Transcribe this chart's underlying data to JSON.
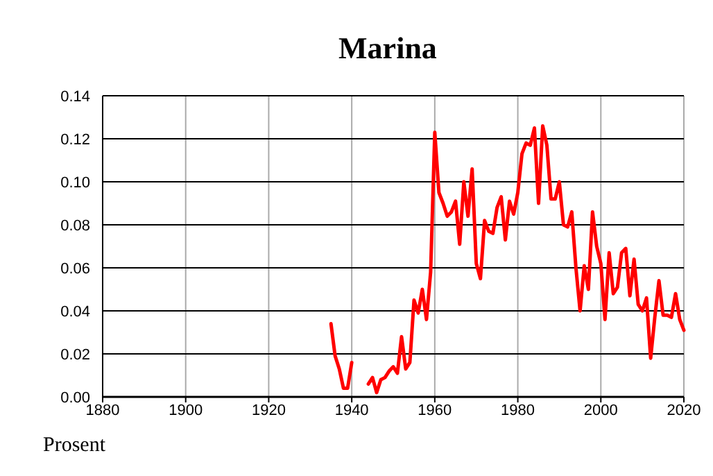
{
  "chart_data": {
    "type": "line",
    "title": "Marina",
    "ylabel": "Prosent",
    "x": [
      1935,
      1936,
      1937,
      1938,
      1939,
      1940,
      1941,
      1944,
      1945,
      1946,
      1947,
      1948,
      1949,
      1950,
      1951,
      1952,
      1953,
      1954,
      1955,
      1956,
      1957,
      1958,
      1959,
      1960,
      1961,
      1962,
      1963,
      1964,
      1965,
      1966,
      1967,
      1968,
      1969,
      1970,
      1971,
      1972,
      1973,
      1974,
      1975,
      1976,
      1977,
      1978,
      1979,
      1980,
      1981,
      1982,
      1983,
      1984,
      1985,
      1986,
      1987,
      1988,
      1989,
      1990,
      1991,
      1992,
      1993,
      1994,
      1995,
      1996,
      1997,
      1998,
      1999,
      2000,
      2001,
      2002,
      2003,
      2004,
      2005,
      2006,
      2007,
      2008,
      2009,
      2010,
      2011,
      2012,
      2013,
      2014,
      2015,
      2016,
      2017,
      2018,
      2019,
      2020
    ],
    "series": [
      {
        "color": "#ff0000",
        "values": [
          0.034,
          0.019,
          0.013,
          0.004,
          0.004,
          0.016,
          null,
          0.006,
          0.009,
          0.002,
          0.008,
          0.009,
          0.012,
          0.014,
          0.011,
          0.028,
          0.013,
          0.016,
          0.045,
          0.039,
          0.05,
          0.036,
          0.058,
          0.123,
          0.095,
          0.09,
          0.084,
          0.086,
          0.091,
          0.071,
          0.1,
          0.084,
          0.106,
          0.062,
          0.055,
          0.082,
          0.077,
          0.076,
          0.088,
          0.093,
          0.073,
          0.091,
          0.085,
          0.095,
          0.113,
          0.118,
          0.117,
          0.125,
          0.09,
          0.126,
          0.117,
          0.092,
          0.092,
          0.1,
          0.08,
          0.079,
          0.086,
          0.06,
          0.04,
          0.061,
          0.05,
          0.086,
          0.07,
          0.062,
          0.036,
          0.067,
          0.048,
          0.051,
          0.067,
          0.069,
          0.047,
          0.064,
          0.043,
          0.04,
          0.046,
          0.018,
          0.037,
          0.054,
          0.038,
          0.038,
          0.037,
          0.048,
          0.036,
          0.031
        ]
      }
    ],
    "xlim": [
      1880,
      2020
    ],
    "xticks": [
      1880,
      1900,
      1920,
      1940,
      1960,
      1980,
      2000,
      2020
    ],
    "ylim": [
      0,
      0.14
    ],
    "yticks": [
      {
        "value": 0,
        "label": "0.00"
      },
      {
        "value": 0.02,
        "label": "0.02"
      },
      {
        "value": 0.04,
        "label": "0.04"
      },
      {
        "value": 0.06,
        "label": "0.06"
      },
      {
        "value": 0.08,
        "label": "0.08"
      },
      {
        "value": 0.1,
        "label": "0.10"
      },
      {
        "value": 0.12,
        "label": "0.12"
      },
      {
        "value": 0.14,
        "label": "0.14"
      }
    ],
    "grid": true,
    "marker": "none",
    "line_style": "solid"
  }
}
